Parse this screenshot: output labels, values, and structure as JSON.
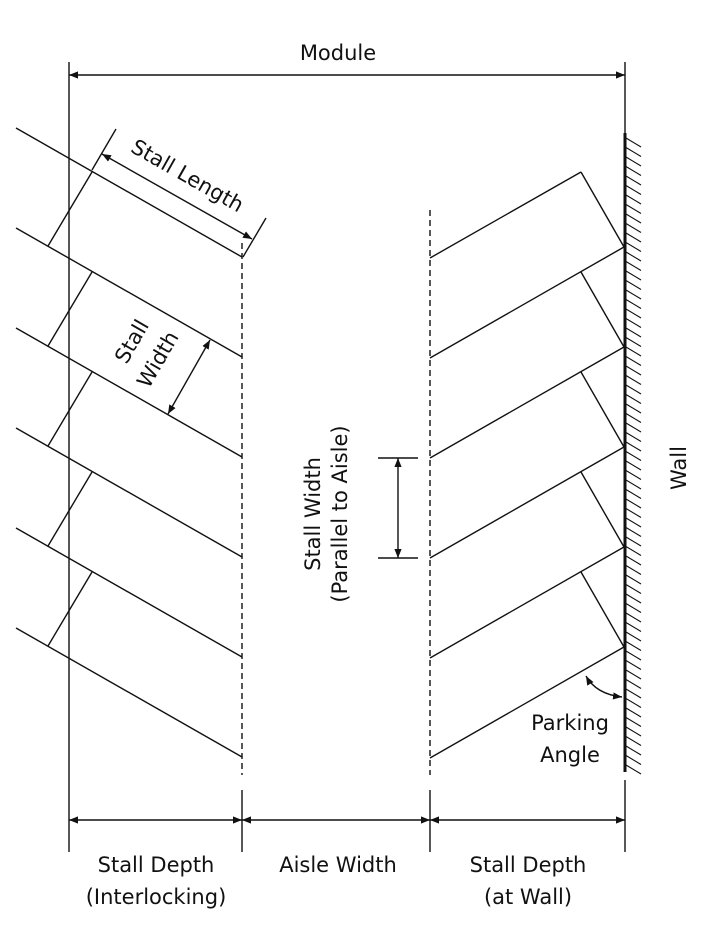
{
  "labels": {
    "module": "Module",
    "stall_length": "Stall Length",
    "stall_width_line1": "Stall",
    "stall_width_line2": "Width",
    "stall_width_parallel_line1": "Stall Width",
    "stall_width_parallel_line2": "(Parallel to Aisle)",
    "wall": "Wall",
    "parking_angle_line1": "Parking",
    "parking_angle_line2": "Angle",
    "stall_depth_interlocking_line1": "Stall Depth",
    "stall_depth_interlocking_line2": "(Interlocking)",
    "aisle_width": "Aisle Width",
    "stall_depth_wall_line1": "Stall Depth",
    "stall_depth_wall_line2": "(at Wall)"
  }
}
